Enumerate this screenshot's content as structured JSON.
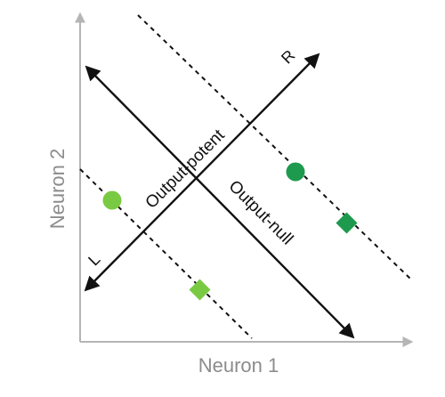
{
  "axes": {
    "x_label": "Neuron 1",
    "y_label": "Neuron 2",
    "color": "#b5b5b5",
    "label_color": "#8c8c8c"
  },
  "directions": {
    "left": "L",
    "right": "R"
  },
  "subspaces": {
    "potent": "Output-potent",
    "null": "Output-null"
  },
  "colors": {
    "line": "#111111",
    "light_green": "#7ac943",
    "dark_green": "#1e9a4e"
  },
  "markers": [
    {
      "name": "light-green-circle",
      "shape": "circle",
      "color": "#7ac943"
    },
    {
      "name": "light-green-diamond",
      "shape": "diamond",
      "color": "#7ac943"
    },
    {
      "name": "dark-green-circle",
      "shape": "circle",
      "color": "#1e9a4e"
    },
    {
      "name": "dark-green-diamond",
      "shape": "diamond",
      "color": "#1e9a4e"
    }
  ]
}
